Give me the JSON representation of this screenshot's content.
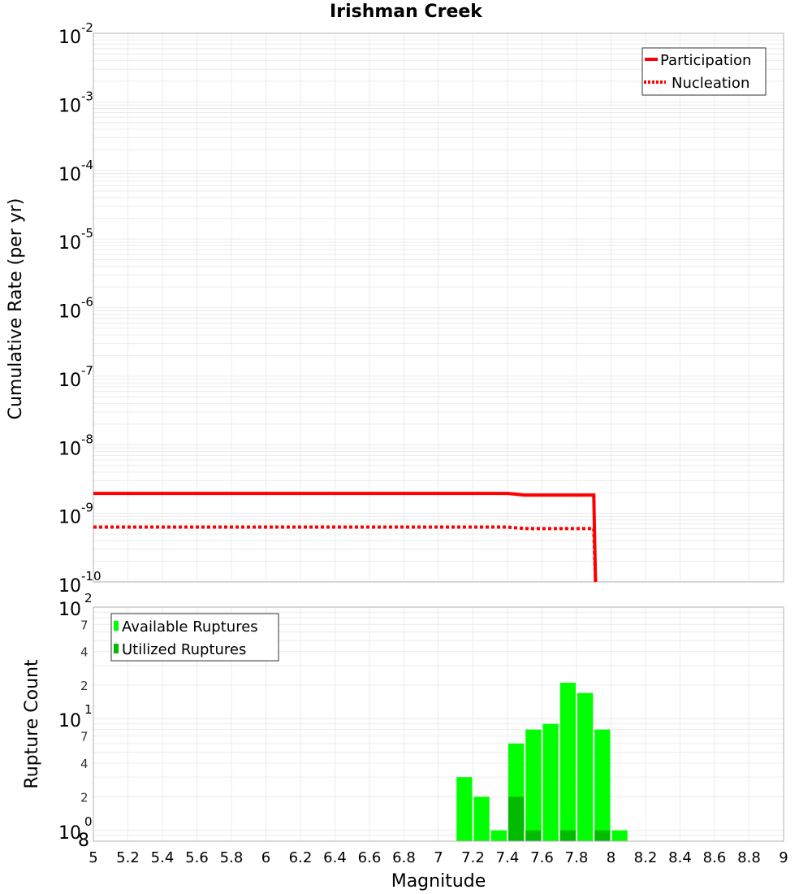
{
  "title": "Irishman Creek",
  "top_chart": {
    "ylabel": "Cumulative Rate (per yr)",
    "y_ticks": [
      {
        "base": "10",
        "exp": "-2"
      },
      {
        "base": "10",
        "exp": "-3"
      },
      {
        "base": "10",
        "exp": "-4"
      },
      {
        "base": "10",
        "exp": "-5"
      },
      {
        "base": "10",
        "exp": "-6"
      },
      {
        "base": "10",
        "exp": "-7"
      },
      {
        "base": "10",
        "exp": "-8"
      },
      {
        "base": "10",
        "exp": "-9"
      },
      {
        "base": "10",
        "exp": "-10"
      }
    ],
    "legend": [
      {
        "label": "Participation",
        "color": "#ff0000",
        "style": "solid"
      },
      {
        "label": "Nucleation",
        "color": "#ff0000",
        "style": "dotted"
      }
    ]
  },
  "bottom_chart": {
    "ylabel": "Rupture Count",
    "y_major_ticks": [
      {
        "base": "10",
        "exp": "2"
      },
      {
        "base": "10",
        "exp": "1"
      },
      {
        "base": "10",
        "exp": "0"
      }
    ],
    "y_minor_ticks": [
      "7",
      "4",
      "2",
      "7",
      "4",
      "2",
      "8"
    ],
    "legend": [
      {
        "label": "Available Ruptures",
        "color": "#00ff00"
      },
      {
        "label": "Utilized Ruptures",
        "color": "#00bb00"
      }
    ]
  },
  "xlabel": "Magnitude",
  "x_ticks": [
    "5",
    "5.2",
    "5.4",
    "5.6",
    "5.8",
    "6",
    "6.2",
    "6.4",
    "6.6",
    "6.8",
    "7",
    "7.2",
    "7.4",
    "7.6",
    "7.8",
    "8",
    "8.2",
    "8.4",
    "8.6",
    "8.8",
    "9"
  ],
  "chart_data": [
    {
      "type": "line",
      "title": "Irishman Creek",
      "xlabel": "Magnitude",
      "ylabel": "Cumulative Rate (per yr)",
      "yscale": "log",
      "xlim": [
        5,
        9
      ],
      "ylim": [
        1e-10,
        0.01
      ],
      "grid": true,
      "legend_position": "upper right",
      "series": [
        {
          "name": "Participation",
          "style": "solid",
          "color": "#ff0000",
          "x": [
            5.0,
            7.4,
            7.5,
            7.9,
            7.91
          ],
          "y": [
            1.95e-09,
            1.95e-09,
            1.85e-09,
            1.85e-09,
            1e-10
          ]
        },
        {
          "name": "Nucleation",
          "style": "dotted",
          "color": "#ff0000",
          "x": [
            5.0,
            7.4,
            7.5,
            7.9,
            7.91
          ],
          "y": [
            6.3e-10,
            6.3e-10,
            6e-10,
            6e-10,
            1e-10
          ]
        }
      ]
    },
    {
      "type": "bar",
      "xlabel": "Magnitude",
      "ylabel": "Rupture Count",
      "yscale": "log",
      "xlim": [
        5,
        9
      ],
      "ylim": [
        0.8,
        100
      ],
      "grid": true,
      "legend_position": "upper left",
      "categories": [
        7.15,
        7.25,
        7.35,
        7.45,
        7.55,
        7.65,
        7.75,
        7.85,
        7.95,
        8.05
      ],
      "series": [
        {
          "name": "Available Ruptures",
          "color": "#00ff00",
          "values": [
            3,
            2,
            1,
            6,
            8,
            9,
            21,
            17,
            8,
            1
          ]
        },
        {
          "name": "Utilized Ruptures",
          "color": "#00bb00",
          "values": [
            0,
            0,
            0,
            2,
            1,
            0,
            1,
            0,
            1,
            0
          ]
        }
      ]
    }
  ]
}
